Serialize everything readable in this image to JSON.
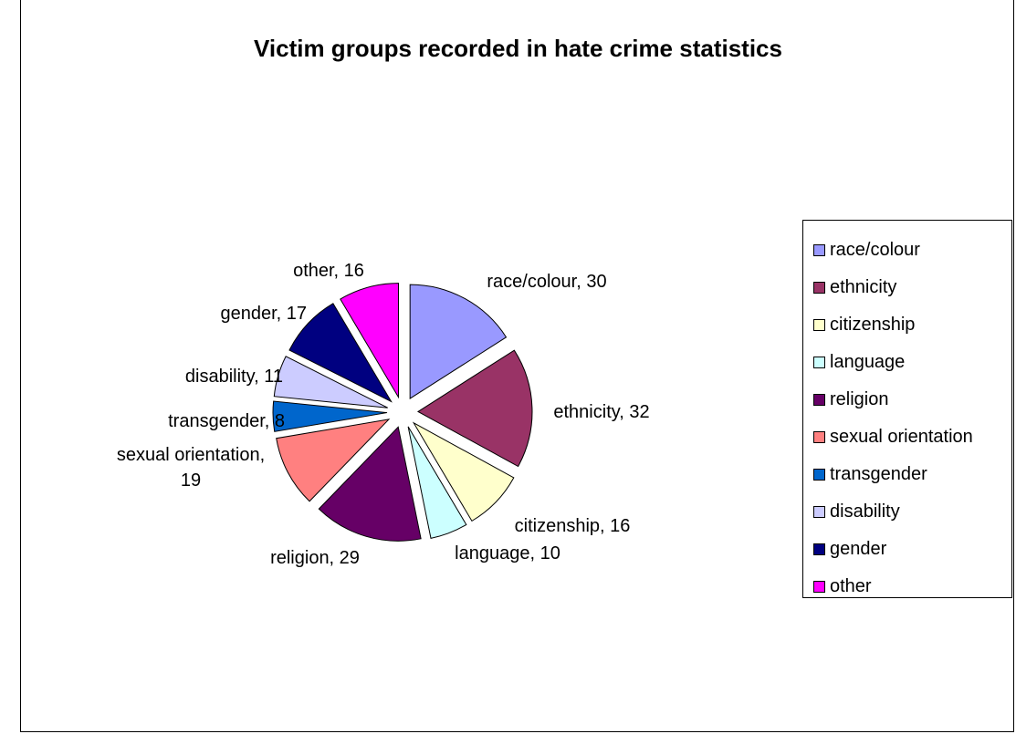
{
  "chart_data": {
    "type": "pie",
    "title": "Victim groups recorded in hate crime statistics",
    "exploded": true,
    "legend_position": "right",
    "slices": [
      {
        "label": "race/colour",
        "value": 30,
        "data_label": "race/colour, 30",
        "color": "#9999FF"
      },
      {
        "label": "ethnicity",
        "value": 32,
        "data_label": "ethnicity, 32",
        "color": "#993366"
      },
      {
        "label": "citizenship",
        "value": 16,
        "data_label": "citizenship, 16",
        "color": "#FFFFCC"
      },
      {
        "label": "language",
        "value": 10,
        "data_label": "language, 10",
        "color": "#CCFFFF"
      },
      {
        "label": "religion",
        "value": 29,
        "data_label": "religion, 29",
        "color": "#660066"
      },
      {
        "label": "sexual orientation",
        "value": 19,
        "data_label": "sexual orientation, 19",
        "color": "#FF8080"
      },
      {
        "label": "transgender",
        "value": 8,
        "data_label": "transgender, 8",
        "color": "#0066CC"
      },
      {
        "label": "disability",
        "value": 11,
        "data_label": "disability, 11",
        "color": "#CCCCFF"
      },
      {
        "label": "gender",
        "value": 17,
        "data_label": "gender, 17",
        "color": "#000080"
      },
      {
        "label": "other",
        "value": 16,
        "data_label": "other, 16",
        "color": "#FF00FF"
      }
    ]
  }
}
